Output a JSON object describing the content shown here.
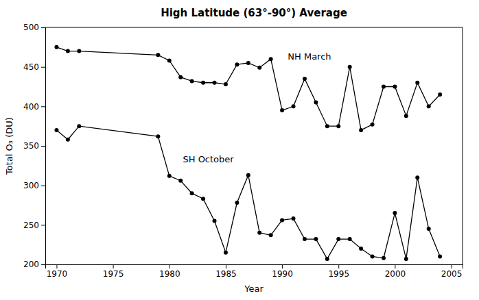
{
  "chart_data": {
    "type": "line",
    "title": "High Latitude (63°-90°) Average",
    "x_label": "Year",
    "y_label": "Total O₃ (DU)",
    "x": [
      1970,
      1971,
      1972,
      1979,
      1980,
      1981,
      1982,
      1983,
      1984,
      1985,
      1986,
      1987,
      1988,
      1989,
      1990,
      1991,
      1992,
      1993,
      1994,
      1995,
      1996,
      1997,
      1998,
      1999,
      2000,
      2001,
      2002,
      2003,
      2004
    ],
    "series": [
      {
        "color": "black",
        "marker": "circle",
        "values": [
          475,
          470,
          470,
          465,
          458,
          437,
          432,
          430,
          430,
          428,
          453,
          455,
          449,
          460,
          395,
          400,
          435,
          405,
          375,
          375,
          450,
          370,
          377,
          425,
          425,
          388,
          430,
          400,
          415
        ]
      },
      {
        "color": "black",
        "marker": "circle",
        "values": [
          370,
          358,
          375,
          362,
          312,
          306,
          290,
          283,
          255,
          215,
          278,
          313,
          240,
          237,
          256,
          258,
          232,
          232,
          207,
          232,
          232,
          220,
          210,
          208,
          265,
          207,
          310,
          245,
          210
        ]
      }
    ],
    "annotations": [
      {
        "text": "NH March",
        "x": 1990.5,
        "y": 462
      },
      {
        "text": "SH October",
        "x": 1981.2,
        "y": 332
      }
    ],
    "xlim": [
      1969,
      2006
    ],
    "ylim": [
      200,
      500
    ],
    "xticks": [
      1970,
      1975,
      1980,
      1985,
      1990,
      1995,
      2000,
      2005
    ],
    "yticks": [
      200,
      250,
      300,
      350,
      400,
      450,
      500
    ],
    "grid": false
  }
}
